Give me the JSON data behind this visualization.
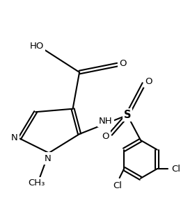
{
  "bg_color": "#ffffff",
  "line_color": "#000000",
  "bond_width": 1.5,
  "font_size": 9.5,
  "figsize": [
    2.6,
    2.88
  ],
  "dpi": 100,
  "xlim": [
    -1.0,
    8.5
  ],
  "ylim": [
    0.0,
    10.0
  ]
}
